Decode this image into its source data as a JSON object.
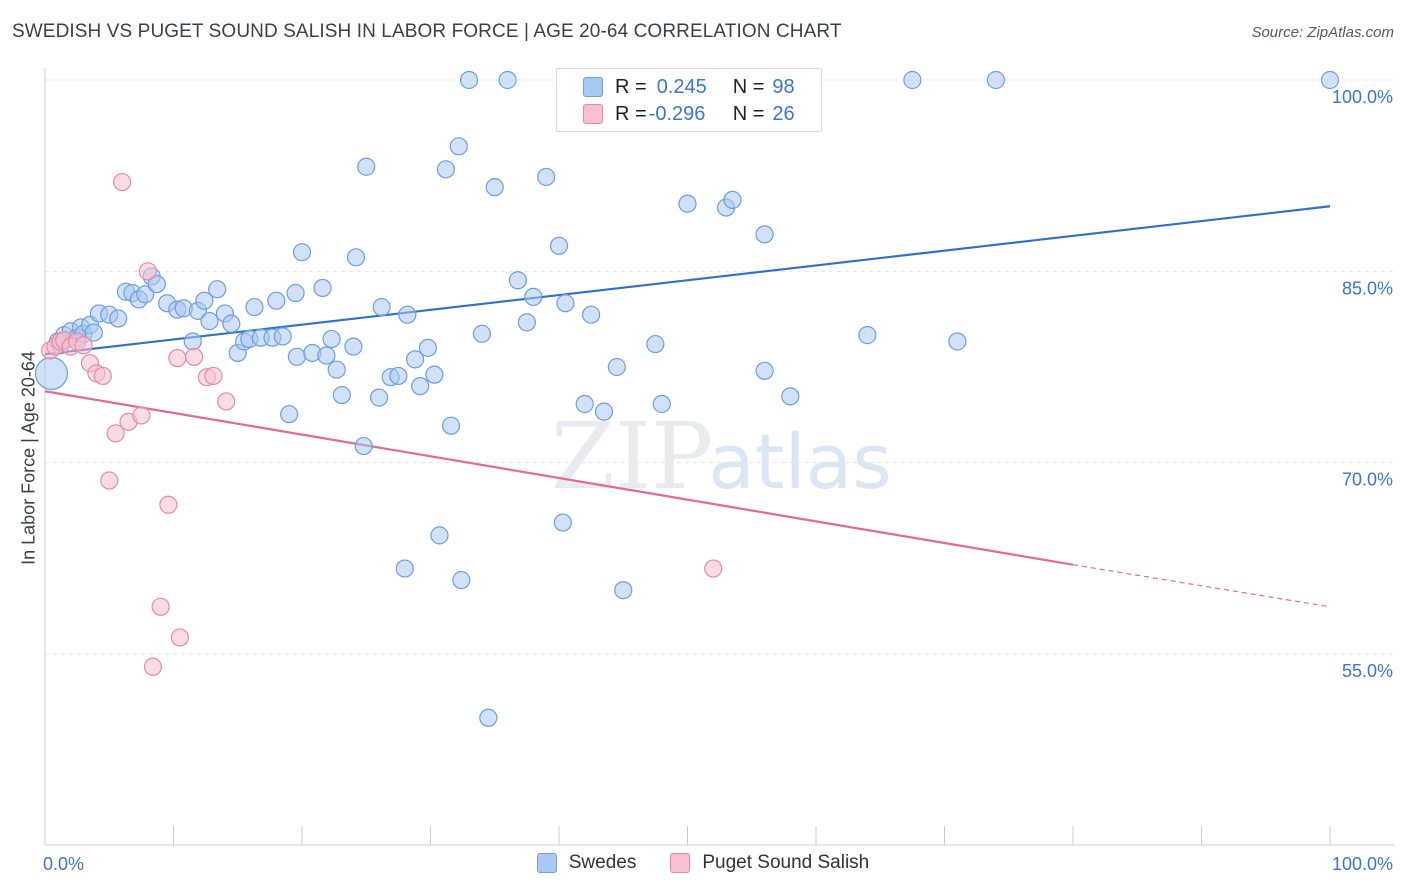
{
  "header": {
    "title": "SWEDISH VS PUGET SOUND SALISH IN LABOR FORCE | AGE 20-64 CORRELATION CHART",
    "source": "Source: ZipAtlas.com"
  },
  "watermark": {
    "zip": "ZIP",
    "atlas": "atlas"
  },
  "legend": {
    "rows": [
      {
        "r_label": "R = ",
        "r_value": "0.245",
        "n_label": "N = ",
        "n_value": "98",
        "color": "#a9c9f3",
        "border": "#6d9fe0"
      },
      {
        "r_label": "R = ",
        "r_value": "-0.296",
        "n_label": "N = ",
        "n_value": "26",
        "color": "#f7c0cf",
        "border": "#e88aa6"
      }
    ]
  },
  "bottom_legend": [
    {
      "label": "Swedes",
      "color": "#a9c9f3",
      "border": "#6d9fe0"
    },
    {
      "label": "Puget Sound Salish",
      "color": "#f7c0cf",
      "border": "#e88aa6"
    }
  ],
  "colors": {
    "blue_fill": "#a9c9f3",
    "blue_stroke": "#6d9fe0",
    "blue_line": "#2f6fd0",
    "pink_fill": "#f7c0cf",
    "pink_stroke": "#e88aa6",
    "pink_line": "#e46a93",
    "grid": "#e3e6ea",
    "tick_label": "#3a76cf"
  },
  "chart_data": {
    "type": "scatter",
    "title": "SWEDISH VS PUGET SOUND SALISH IN LABOR FORCE | AGE 20-64 CORRELATION CHART",
    "ylabel": "In Labor Force | Age 20-64",
    "xlabel": "",
    "xlim": [
      0,
      100
    ],
    "ylim": [
      40,
      101
    ],
    "x_tick_labels": [
      "0.0%",
      "100.0%"
    ],
    "y_ticks": [
      55,
      70,
      85,
      100
    ],
    "y_tick_labels": [
      "55.0%",
      "70.0%",
      "85.0%",
      "100.0%"
    ],
    "grid": true,
    "legend_position": "top-center",
    "series": [
      {
        "name": "Swedes",
        "points": [
          [
            0.5,
            77.0
          ],
          [
            1.0,
            79.5
          ],
          [
            1.2,
            79.2
          ],
          [
            1.5,
            80.0
          ],
          [
            2.0,
            80.3
          ],
          [
            2.5,
            79.8
          ],
          [
            2.8,
            80.6
          ],
          [
            3.0,
            80.1
          ],
          [
            3.5,
            80.8
          ],
          [
            3.8,
            80.2
          ],
          [
            4.2,
            81.7
          ],
          [
            5.0,
            81.6
          ],
          [
            5.7,
            81.3
          ],
          [
            6.3,
            83.4
          ],
          [
            6.8,
            83.3
          ],
          [
            7.3,
            82.8
          ],
          [
            7.8,
            83.2
          ],
          [
            8.3,
            84.6
          ],
          [
            8.7,
            84.0
          ],
          [
            9.5,
            82.5
          ],
          [
            10.3,
            82.0
          ],
          [
            10.8,
            82.1
          ],
          [
            11.5,
            79.5
          ],
          [
            11.9,
            81.9
          ],
          [
            12.4,
            82.7
          ],
          [
            12.8,
            81.1
          ],
          [
            13.4,
            83.6
          ],
          [
            14.0,
            81.7
          ],
          [
            14.5,
            80.9
          ],
          [
            15.0,
            78.6
          ],
          [
            15.5,
            79.5
          ],
          [
            15.9,
            79.7
          ],
          [
            16.3,
            82.2
          ],
          [
            16.8,
            79.8
          ],
          [
            17.7,
            79.8
          ],
          [
            18.0,
            82.7
          ],
          [
            18.5,
            79.9
          ],
          [
            19.0,
            73.8
          ],
          [
            19.5,
            83.3
          ],
          [
            19.6,
            78.3
          ],
          [
            20.0,
            86.5
          ],
          [
            20.8,
            78.6
          ],
          [
            21.6,
            83.7
          ],
          [
            21.9,
            78.4
          ],
          [
            22.3,
            79.7
          ],
          [
            22.7,
            77.3
          ],
          [
            23.1,
            75.3
          ],
          [
            24.0,
            79.1
          ],
          [
            24.2,
            86.1
          ],
          [
            24.8,
            71.3
          ],
          [
            25.0,
            93.2
          ],
          [
            26.0,
            75.1
          ],
          [
            26.2,
            82.2
          ],
          [
            26.9,
            76.7
          ],
          [
            27.5,
            76.8
          ],
          [
            28.0,
            61.7
          ],
          [
            28.2,
            81.6
          ],
          [
            28.8,
            78.1
          ],
          [
            29.2,
            76.0
          ],
          [
            29.8,
            79.0
          ],
          [
            30.3,
            76.9
          ],
          [
            30.7,
            64.3
          ],
          [
            31.2,
            93.0
          ],
          [
            31.6,
            72.9
          ],
          [
            32.2,
            94.8
          ],
          [
            32.4,
            60.8
          ],
          [
            33.0,
            100.0
          ],
          [
            34.0,
            80.1
          ],
          [
            34.5,
            50.0
          ],
          [
            35.0,
            91.6
          ],
          [
            36.0,
            100.0
          ],
          [
            36.8,
            84.3
          ],
          [
            37.5,
            81.0
          ],
          [
            38.0,
            83.0
          ],
          [
            39.0,
            92.4
          ],
          [
            40.0,
            87.0
          ],
          [
            40.3,
            65.3
          ],
          [
            40.5,
            82.5
          ],
          [
            41.5,
            100.0
          ],
          [
            42.0,
            74.6
          ],
          [
            42.5,
            81.6
          ],
          [
            43.5,
            74.0
          ],
          [
            45.0,
            60.0
          ],
          [
            46.0,
            100.0
          ],
          [
            48.0,
            74.6
          ],
          [
            50.0,
            90.3
          ],
          [
            53.0,
            90.0
          ],
          [
            53.5,
            90.6
          ],
          [
            56.0,
            87.9
          ],
          [
            56.0,
            77.2
          ],
          [
            58.0,
            75.2
          ],
          [
            64.0,
            80.0
          ],
          [
            67.5,
            100.0
          ],
          [
            71.0,
            79.5
          ],
          [
            74.0,
            100.0
          ],
          [
            100.0,
            100.0
          ],
          [
            44.5,
            77.5
          ],
          [
            47.5,
            79.3
          ]
        ]
      },
      {
        "name": "Puget Sound Salish",
        "points": [
          [
            0.4,
            78.8
          ],
          [
            0.8,
            79.1
          ],
          [
            1.2,
            79.5
          ],
          [
            1.5,
            79.6
          ],
          [
            2.0,
            79.1
          ],
          [
            2.5,
            79.5
          ],
          [
            3.0,
            79.2
          ],
          [
            3.5,
            77.8
          ],
          [
            4.0,
            77.0
          ],
          [
            4.5,
            76.8
          ],
          [
            5.0,
            68.6
          ],
          [
            6.0,
            92.0
          ],
          [
            5.5,
            72.3
          ],
          [
            6.5,
            73.2
          ],
          [
            7.5,
            73.7
          ],
          [
            8.0,
            85.0
          ],
          [
            8.4,
            54.0
          ],
          [
            9.0,
            58.7
          ],
          [
            9.6,
            66.7
          ],
          [
            10.3,
            78.2
          ],
          [
            10.5,
            56.3
          ],
          [
            11.6,
            78.3
          ],
          [
            12.6,
            76.7
          ],
          [
            13.1,
            76.8
          ],
          [
            14.1,
            74.8
          ],
          [
            52.0,
            61.7
          ]
        ]
      }
    ],
    "trendlines": [
      {
        "series": "Swedes",
        "x": [
          0,
          100
        ],
        "y": [
          78.5,
          90.1
        ],
        "style": "solid"
      },
      {
        "series": "Puget Sound Salish",
        "x": [
          0,
          80,
          100
        ],
        "y": [
          75.6,
          62.0,
          58.7
        ],
        "style": "solid-then-dashed"
      }
    ]
  }
}
